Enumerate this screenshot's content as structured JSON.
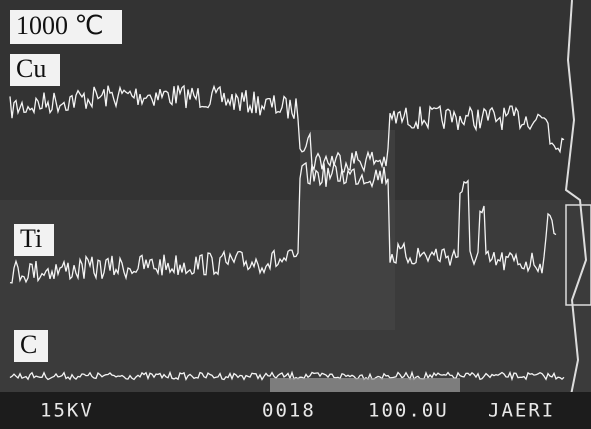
{
  "header": {
    "title": "1000 ℃"
  },
  "traces": [
    {
      "label": "Cu"
    },
    {
      "label": "Ti"
    },
    {
      "label": "C"
    }
  ],
  "footer": {
    "voltage": "15KV",
    "frame": "0018",
    "scale": "100.0U",
    "lab": "JAERI"
  }
}
